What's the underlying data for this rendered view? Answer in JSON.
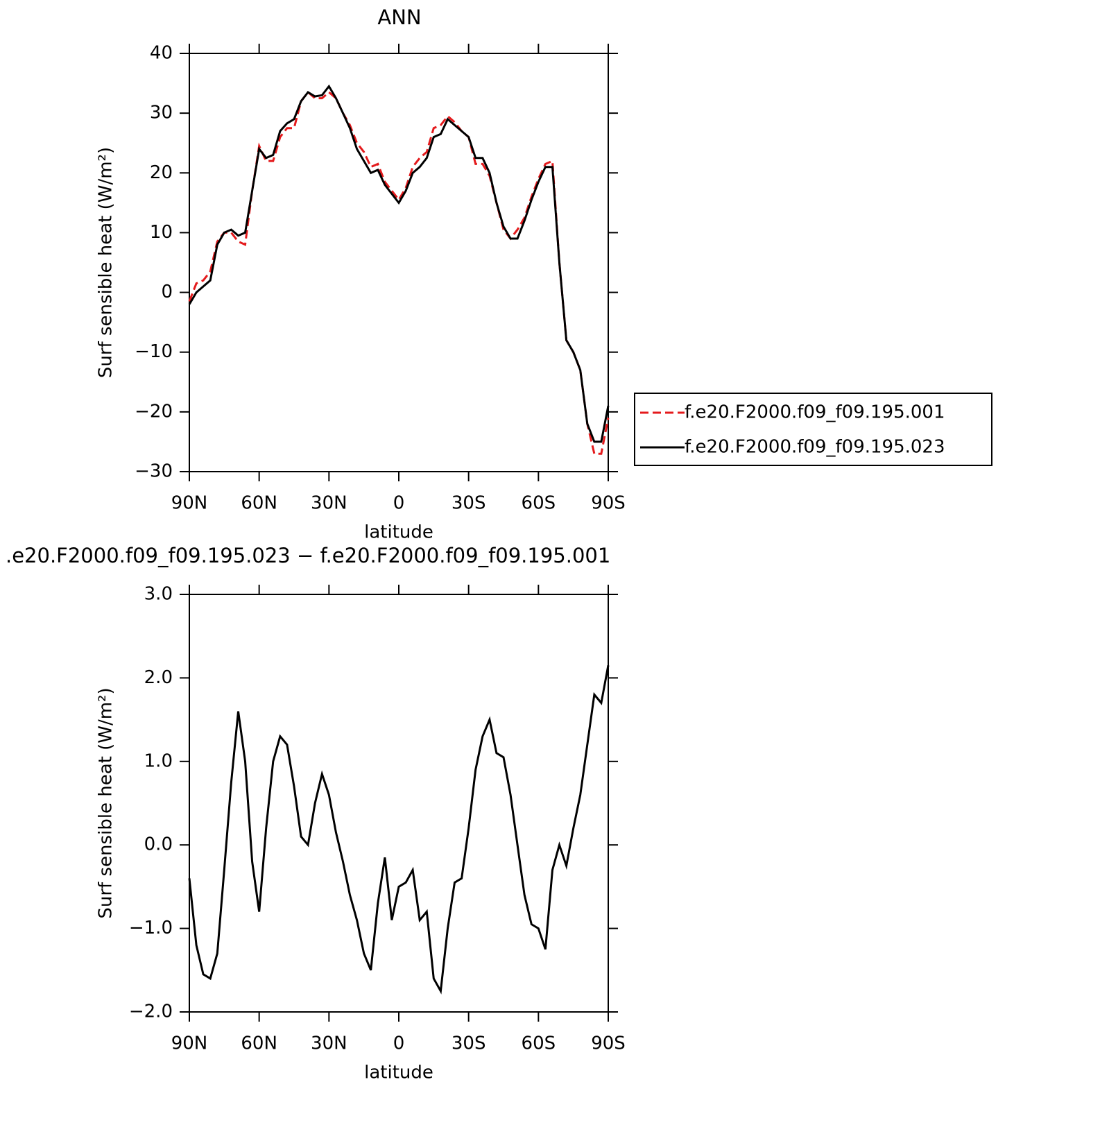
{
  "chart_data": [
    {
      "type": "line",
      "title": "ANN",
      "x_label": "latitude",
      "y_label": "Surf sensible heat (W/m²)",
      "x": [
        90,
        87,
        84,
        81,
        78,
        75,
        72,
        69,
        66,
        63,
        60,
        57,
        54,
        51,
        48,
        45,
        42,
        39,
        36,
        33,
        30,
        27,
        24,
        21,
        18,
        15,
        12,
        9,
        6,
        3,
        0,
        -3,
        -6,
        -9,
        -12,
        -15,
        -18,
        -21,
        -24,
        -27,
        -30,
        -33,
        -36,
        -39,
        -42,
        -45,
        -48,
        -51,
        -54,
        -57,
        -60,
        -63,
        -66,
        -69,
        -72,
        -75,
        -78,
        -81,
        -84,
        -87,
        -90
      ],
      "series": [
        {
          "name": "f.e20.F2000.f09_f09.195.001",
          "color": "#e41a1c",
          "style": "dashed",
          "values": [
            -1.5,
            1.5,
            2,
            3.5,
            8.5,
            10,
            10,
            8.5,
            8,
            17,
            24.5,
            22,
            22,
            26,
            27.5,
            27.5,
            32,
            33.5,
            32.5,
            32.5,
            33.5,
            32.5,
            30,
            28,
            25,
            23.5,
            21,
            21.5,
            18.5,
            17,
            15.5,
            17.5,
            21,
            22.5,
            23.5,
            27.5,
            28,
            29.5,
            28.5,
            27,
            26,
            21.5,
            21.5,
            19.5,
            15,
            10.5,
            9,
            10.5,
            12.5,
            16,
            19,
            21.5,
            22,
            5,
            -8,
            -10,
            -13,
            -22,
            -27,
            -27,
            -21
          ]
        },
        {
          "name": "f.e20.F2000.f09_f09.195.023",
          "color": "#000000",
          "style": "solid",
          "values": [
            -2,
            0,
            1,
            2,
            8,
            10,
            10.5,
            9.5,
            10,
            17,
            24,
            22.5,
            23,
            27,
            28.3,
            29,
            32,
            33.5,
            32.8,
            33,
            34.5,
            32.5,
            30,
            27.5,
            24,
            22,
            20,
            20.5,
            18,
            16.5,
            15,
            17,
            20,
            21,
            22.5,
            26,
            26.5,
            29,
            28,
            27,
            26,
            22.5,
            22.5,
            20,
            15,
            11,
            9,
            9,
            12,
            15.5,
            18.5,
            21,
            21,
            5,
            -8,
            -10,
            -13,
            -22,
            -25,
            -25,
            -19
          ]
        }
      ],
      "xlim": [
        90,
        -90
      ],
      "xticks": [
        {
          "value": 90,
          "label": "90N"
        },
        {
          "value": 60,
          "label": "60N"
        },
        {
          "value": 30,
          "label": "30N"
        },
        0,
        {
          "value": -30,
          "label": "30S"
        },
        {
          "value": -60,
          "label": "60S"
        },
        {
          "value": -90,
          "label": "90S"
        }
      ],
      "ylim": [
        -30,
        40
      ],
      "yticks": [
        {
          "value": -30,
          "label": "−30"
        },
        {
          "value": -20,
          "label": "−20"
        },
        {
          "value": -10,
          "label": "−10"
        },
        0,
        10,
        20,
        30,
        40
      ],
      "legend": "right",
      "grid": false
    },
    {
      "type": "line",
      "title": ".e20.F2000.f09_f09.195.023 − f.e20.F2000.f09_f09.195.001",
      "x_label": "latitude",
      "y_label": "Surf sensible heat (W/m²)",
      "x": [
        90,
        87,
        84,
        81,
        78,
        75,
        72,
        69,
        66,
        63,
        60,
        57,
        54,
        51,
        48,
        45,
        42,
        39,
        36,
        33,
        30,
        27,
        24,
        21,
        18,
        15,
        12,
        9,
        6,
        3,
        0,
        -3,
        -6,
        -9,
        -12,
        -15,
        -18,
        -21,
        -24,
        -27,
        -30,
        -33,
        -36,
        -39,
        -42,
        -45,
        -48,
        -51,
        -54,
        -57,
        -60,
        -63,
        -66,
        -69,
        -72,
        -75,
        -78,
        -81,
        -84,
        -87,
        -90
      ],
      "color": "#000000",
      "values": [
        -0.4,
        -1.2,
        -1.55,
        -1.6,
        -1.3,
        -0.3,
        0.75,
        1.6,
        1.0,
        -0.2,
        -0.8,
        0.2,
        1.0,
        1.3,
        1.2,
        0.7,
        0.1,
        0.0,
        0.5,
        0.85,
        0.6,
        0.15,
        -0.2,
        -0.6,
        -0.9,
        -1.3,
        -1.5,
        -0.7,
        -0.15,
        -0.9,
        -0.5,
        -0.45,
        -0.3,
        -0.9,
        -0.8,
        -1.6,
        -1.75,
        -1.0,
        -0.45,
        -0.4,
        0.2,
        0.9,
        1.3,
        1.5,
        1.1,
        1.05,
        0.6,
        0.0,
        -0.6,
        -0.95,
        -1.0,
        -1.25,
        -0.3,
        0.0,
        -0.25,
        0.2,
        0.6,
        1.2,
        1.8,
        1.7,
        2.15
      ],
      "xlim": [
        90,
        -90
      ],
      "xticks": [
        {
          "value": 90,
          "label": "90N"
        },
        {
          "value": 60,
          "label": "60N"
        },
        {
          "value": 30,
          "label": "30N"
        },
        0,
        {
          "value": -30,
          "label": "30S"
        },
        {
          "value": -60,
          "label": "60S"
        },
        {
          "value": -90,
          "label": "90S"
        }
      ],
      "ylim": [
        -2,
        3
      ],
      "yticks": [
        {
          "value": -2,
          "label": "−2.0"
        },
        {
          "value": -1,
          "label": "−1.0"
        },
        {
          "value": 0,
          "label": "0.0"
        },
        {
          "value": 1,
          "label": "1.0"
        },
        {
          "value": 2,
          "label": "2.0"
        },
        {
          "value": 3,
          "label": "3.0"
        }
      ],
      "grid": false
    }
  ]
}
